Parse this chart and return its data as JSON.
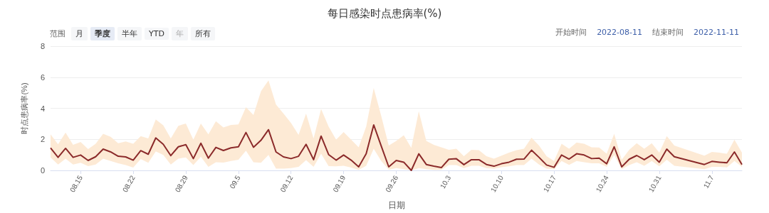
{
  "chart_data": {
    "type": "line",
    "title": "每日感染时点患病率(%)",
    "xlabel": "日期",
    "ylabel": "时点患病率(%)",
    "annotations": [
      "范围",
      "月",
      "季度",
      "半年",
      "YTD",
      "年",
      "所有",
      "开始时间",
      "2022-08-11",
      "结束时间",
      "2022-11-11"
    ],
    "xlim": [
      "2022-08-11",
      "2022-11-11"
    ],
    "xticks": [
      {
        "value": "2022-08-15",
        "label": "08.15"
      },
      {
        "value": "2022-08-22",
        "label": "08.22"
      },
      {
        "value": "2022-08-29",
        "label": "08.29"
      },
      {
        "value": "2022-09-05",
        "label": "09.5"
      },
      {
        "value": "2022-09-12",
        "label": "09.12"
      },
      {
        "value": "2022-09-19",
        "label": "09.19"
      },
      {
        "value": "2022-09-26",
        "label": "09.26"
      },
      {
        "value": "2022-10-03",
        "label": "10.3"
      },
      {
        "value": "2022-10-10",
        "label": "10.10"
      },
      {
        "value": "2022-10-17",
        "label": "10.17"
      },
      {
        "value": "2022-10-24",
        "label": "10.24"
      },
      {
        "value": "2022-10-31",
        "label": "10.31"
      },
      {
        "value": "2022-11-07",
        "label": "11.7"
      }
    ],
    "ylim": [
      0,
      8
    ],
    "yticks": [
      0,
      2,
      4,
      6,
      8
    ],
    "grid": "y",
    "marker": "none",
    "line_style": "solid",
    "series": [
      {
        "color": "#8b2a2a",
        "x": [
          "2022-08-11",
          "2022-08-12",
          "2022-08-13",
          "2022-08-14",
          "2022-08-15",
          "2022-08-16",
          "2022-08-17",
          "2022-08-18",
          "2022-08-19",
          "2022-08-20",
          "2022-08-21",
          "2022-08-22",
          "2022-08-23",
          "2022-08-24",
          "2022-08-25",
          "2022-08-26",
          "2022-08-27",
          "2022-08-28",
          "2022-08-29",
          "2022-08-30",
          "2022-08-31",
          "2022-09-01",
          "2022-09-02",
          "2022-09-03",
          "2022-09-04",
          "2022-09-05",
          "2022-09-06",
          "2022-09-07",
          "2022-09-08",
          "2022-09-09",
          "2022-09-10",
          "2022-09-11",
          "2022-09-12",
          "2022-09-13",
          "2022-09-14",
          "2022-09-15",
          "2022-09-16",
          "2022-09-17",
          "2022-09-18",
          "2022-09-19",
          "2022-09-20",
          "2022-09-21",
          "2022-09-22",
          "2022-09-23",
          "2022-09-24",
          "2022-09-25",
          "2022-09-26",
          "2022-09-27",
          "2022-09-28",
          "2022-09-29",
          "2022-09-30",
          "2022-10-01",
          "2022-10-02",
          "2022-10-03",
          "2022-10-04",
          "2022-10-05",
          "2022-10-06",
          "2022-10-07",
          "2022-10-08",
          "2022-10-09",
          "2022-10-10",
          "2022-10-11",
          "2022-10-12",
          "2022-10-13",
          "2022-10-14",
          "2022-10-15",
          "2022-10-16",
          "2022-10-17",
          "2022-10-18",
          "2022-10-19",
          "2022-10-20",
          "2022-10-21",
          "2022-10-22",
          "2022-10-23",
          "2022-10-24",
          "2022-10-25",
          "2022-10-26",
          "2022-10-27",
          "2022-10-28",
          "2022-10-29",
          "2022-10-30",
          "2022-10-31",
          "2022-11-01",
          "2022-11-02",
          "2022-11-06",
          "2022-11-07",
          "2022-11-08",
          "2022-11-09",
          "2022-11-10",
          "2022-11-11"
        ],
        "values": [
          1.45,
          0.84,
          1.42,
          0.84,
          0.99,
          0.64,
          0.88,
          1.37,
          1.19,
          0.91,
          0.87,
          0.66,
          1.27,
          1.04,
          2.09,
          1.68,
          0.95,
          1.52,
          1.66,
          0.76,
          1.75,
          0.79,
          1.48,
          1.28,
          1.45,
          1.52,
          2.44,
          1.49,
          1.94,
          2.62,
          1.19,
          0.87,
          0.76,
          0.91,
          1.68,
          0.69,
          2.21,
          1.02,
          0.66,
          0.99,
          0.66,
          0.23,
          1.07,
          2.93,
          1.57,
          0.23,
          0.64,
          0.53,
          0.0,
          1.07,
          0.38,
          0.27,
          0.18,
          0.72,
          0.75,
          0.37,
          0.69,
          0.69,
          0.38,
          0.27,
          0.43,
          0.53,
          0.72,
          0.73,
          1.3,
          0.84,
          0.35,
          0.2,
          0.99,
          0.73,
          1.07,
          0.99,
          0.76,
          0.79,
          0.43,
          1.52,
          0.23,
          0.72,
          0.96,
          0.69,
          0.99,
          0.53,
          1.37,
          0.88,
          0.38,
          0.58,
          0.53,
          0.49,
          1.19,
          0.38
        ],
        "lower": [
          0.84,
          0.38,
          0.76,
          0.38,
          0.49,
          0.27,
          0.38,
          0.76,
          0.61,
          0.46,
          0.34,
          0.18,
          0.73,
          0.49,
          1.22,
          0.99,
          0.38,
          0.76,
          0.84,
          0.34,
          0.88,
          0.23,
          0.53,
          0.5,
          0.61,
          0.69,
          1.27,
          0.53,
          0.49,
          0.99,
          0.12,
          0.11,
          0.15,
          0.23,
          0.66,
          0.23,
          1.07,
          0.27,
          0.26,
          0.3,
          0.18,
          0.03,
          0.3,
          1.4,
          0.61,
          0.05,
          0.15,
          0.08,
          0.0,
          0.15,
          0.08,
          0.03,
          0.03,
          0.34,
          0.34,
          0.15,
          0.3,
          0.3,
          0.15,
          0.12,
          0.21,
          0.26,
          0.34,
          0.34,
          0.76,
          0.38,
          0.11,
          0.08,
          0.61,
          0.35,
          0.61,
          0.53,
          0.46,
          0.46,
          0.23,
          0.99,
          0.08,
          0.34,
          0.53,
          0.3,
          0.61,
          0.26,
          0.69,
          0.3,
          0.08,
          0.23,
          0.23,
          0.2,
          0.61,
          0.23
        ],
        "upper": [
          2.32,
          1.68,
          2.44,
          1.65,
          1.83,
          1.37,
          1.71,
          2.36,
          2.16,
          1.75,
          1.86,
          1.72,
          2.21,
          2.06,
          3.28,
          2.9,
          2.06,
          2.87,
          3.02,
          1.98,
          3.02,
          2.32,
          3.17,
          2.77,
          2.93,
          2.96,
          4.07,
          3.57,
          5.1,
          5.79,
          4.24,
          3.66,
          3.05,
          2.29,
          3.66,
          2.06,
          3.96,
          2.82,
          1.98,
          2.47,
          1.98,
          1.49,
          2.82,
          5.3,
          3.51,
          1.6,
          1.9,
          2.26,
          1.45,
          3.81,
          1.9,
          1.65,
          1.49,
          1.33,
          1.4,
          0.91,
          1.33,
          1.3,
          0.91,
          0.76,
          0.95,
          1.14,
          1.3,
          1.4,
          2.1,
          1.6,
          0.91,
          0.61,
          1.71,
          1.4,
          1.8,
          1.71,
          1.49,
          1.48,
          1.07,
          2.36,
          0.69,
          1.33,
          1.75,
          1.4,
          1.75,
          1.14,
          2.21,
          1.6,
          0.95,
          1.19,
          1.14,
          1.07,
          1.98,
          1.14
        ]
      }
    ]
  }
}
